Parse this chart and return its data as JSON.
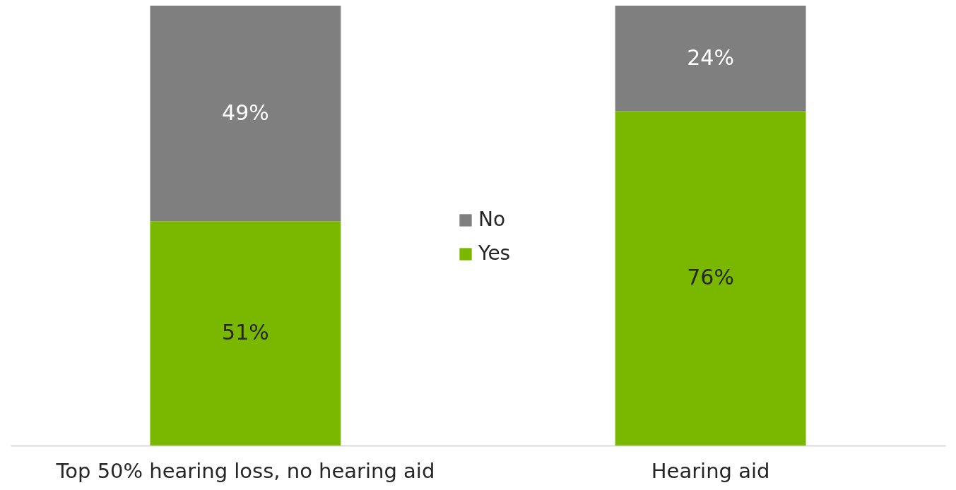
{
  "chart_data": {
    "type": "bar",
    "stacked": true,
    "categories": [
      "Top 50% hearing loss, no hearing aid",
      "Hearing aid"
    ],
    "series": [
      {
        "name": "Yes",
        "color": "#7ab800",
        "values": [
          51,
          76
        ],
        "value_labels": [
          "51%",
          "76%"
        ]
      },
      {
        "name": "No",
        "color": "#7f7f7f",
        "values": [
          49,
          24
        ],
        "value_labels": [
          "49%",
          "24%"
        ]
      }
    ],
    "ylim": [
      0,
      100
    ],
    "tick_labels": "x",
    "legend": "center"
  }
}
